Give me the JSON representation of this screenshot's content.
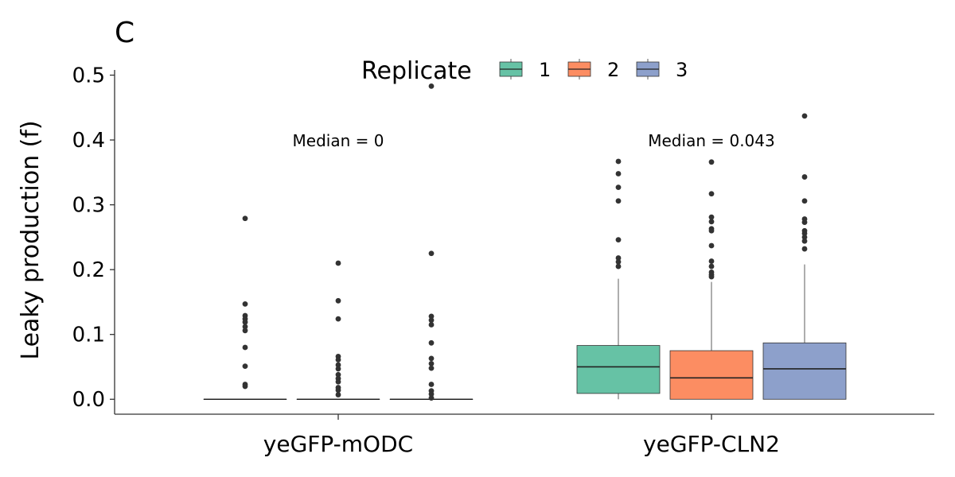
{
  "chart_data": {
    "type": "box",
    "panel_label": "C",
    "ylabel": "Leaky production (f)",
    "xlabel": "",
    "ylim": [
      -0.023,
      0.508
    ],
    "yticks": [
      0.0,
      0.1,
      0.2,
      0.3,
      0.4,
      0.5
    ],
    "ytick_labels": [
      "0.0",
      "0.1",
      "0.2",
      "0.3",
      "0.4",
      "0.5"
    ],
    "categories": [
      "yeGFP-mODC",
      "yeGFP-CLN2"
    ],
    "legend": {
      "title": "Replicate",
      "position": "top",
      "entries": [
        {
          "label": "1",
          "color": "#66C2A5"
        },
        {
          "label": "2",
          "color": "#FC8D62"
        },
        {
          "label": "3",
          "color": "#8DA0CB"
        }
      ]
    },
    "annotations": [
      {
        "category": "yeGFP-mODC",
        "text": "Median = 0",
        "y": 0.399
      },
      {
        "category": "yeGFP-CLN2",
        "text": "Median = 0.043",
        "y": 0.399
      }
    ],
    "boxes": [
      {
        "category": "yeGFP-mODC",
        "replicate": "1",
        "q1": 0,
        "median": 0,
        "q3": 0,
        "whisker_low": 0,
        "whisker_high": 0,
        "outliers": [
          0.279,
          0.147,
          0.129,
          0.124,
          0.119,
          0.112,
          0.106,
          0.08,
          0.051,
          0.023,
          0.02
        ]
      },
      {
        "category": "yeGFP-mODC",
        "replicate": "2",
        "q1": 0,
        "median": 0,
        "q3": 0,
        "whisker_low": 0,
        "whisker_high": 0,
        "outliers": [
          0.21,
          0.152,
          0.124,
          0.066,
          0.061,
          0.053,
          0.047,
          0.038,
          0.032,
          0.027,
          0.018,
          0.014,
          0.007
        ]
      },
      {
        "category": "yeGFP-mODC",
        "replicate": "3",
        "q1": 0,
        "median": 0,
        "q3": 0,
        "whisker_low": 0,
        "whisker_high": 0,
        "outliers": [
          0.483,
          0.225,
          0.128,
          0.122,
          0.115,
          0.087,
          0.063,
          0.055,
          0.048,
          0.023,
          0.013,
          0.008,
          0.002
        ]
      },
      {
        "category": "yeGFP-CLN2",
        "replicate": "1",
        "q1": 0.009,
        "median": 0.05,
        "q3": 0.083,
        "whisker_low": 0.0,
        "whisker_high": 0.186,
        "outliers": [
          0.367,
          0.348,
          0.327,
          0.306,
          0.246,
          0.218,
          0.212,
          0.205
        ]
      },
      {
        "category": "yeGFP-CLN2",
        "replicate": "2",
        "q1": 0.0,
        "median": 0.033,
        "q3": 0.075,
        "whisker_low": 0.0,
        "whisker_high": 0.181,
        "outliers": [
          0.366,
          0.317,
          0.281,
          0.274,
          0.263,
          0.26,
          0.237,
          0.213,
          0.205,
          0.196,
          0.192,
          0.189
        ]
      },
      {
        "category": "yeGFP-CLN2",
        "replicate": "3",
        "q1": 0.0,
        "median": 0.047,
        "q3": 0.087,
        "whisker_low": 0.0,
        "whisker_high": 0.208,
        "outliers": [
          0.437,
          0.343,
          0.306,
          0.278,
          0.273,
          0.26,
          0.256,
          0.25,
          0.244,
          0.232
        ]
      }
    ]
  }
}
